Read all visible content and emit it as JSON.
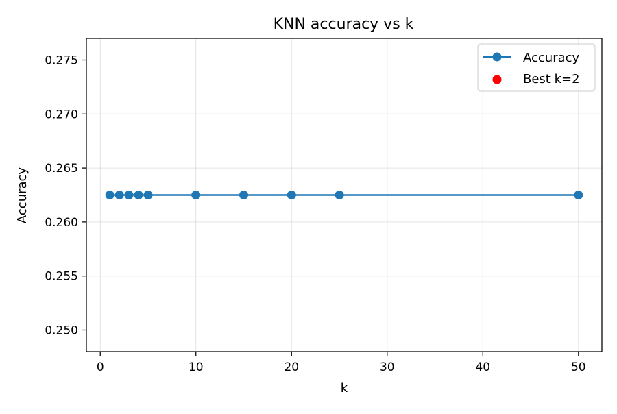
{
  "chart_data": {
    "type": "line",
    "title": "KNN accuracy vs k",
    "xlabel": "k",
    "ylabel": "Accuracy",
    "xlim": [
      -1.45,
      52.45
    ],
    "ylim": [
      0.248,
      0.277
    ],
    "xticks": [
      0,
      10,
      20,
      30,
      40,
      50
    ],
    "xtick_labels": [
      "0",
      "10",
      "20",
      "30",
      "40",
      "50"
    ],
    "yticks": [
      0.25,
      0.255,
      0.26,
      0.265,
      0.27,
      0.275
    ],
    "ytick_labels": [
      "0.250",
      "0.255",
      "0.260",
      "0.265",
      "0.270",
      "0.275"
    ],
    "grid": true,
    "legend_position": "top-right",
    "series": [
      {
        "name": "Accuracy",
        "kind": "line-with-markers",
        "color": "#1f77b4",
        "x": [
          1,
          2,
          3,
          4,
          5,
          10,
          15,
          20,
          25,
          50
        ],
        "y": [
          0.2625,
          0.2625,
          0.2625,
          0.2625,
          0.2625,
          0.2625,
          0.2625,
          0.2625,
          0.2625,
          0.2625
        ]
      },
      {
        "name": "Best k=2",
        "kind": "scatter",
        "color": "#ff0000",
        "x": [
          2
        ],
        "y": [
          0.2625
        ]
      }
    ]
  }
}
